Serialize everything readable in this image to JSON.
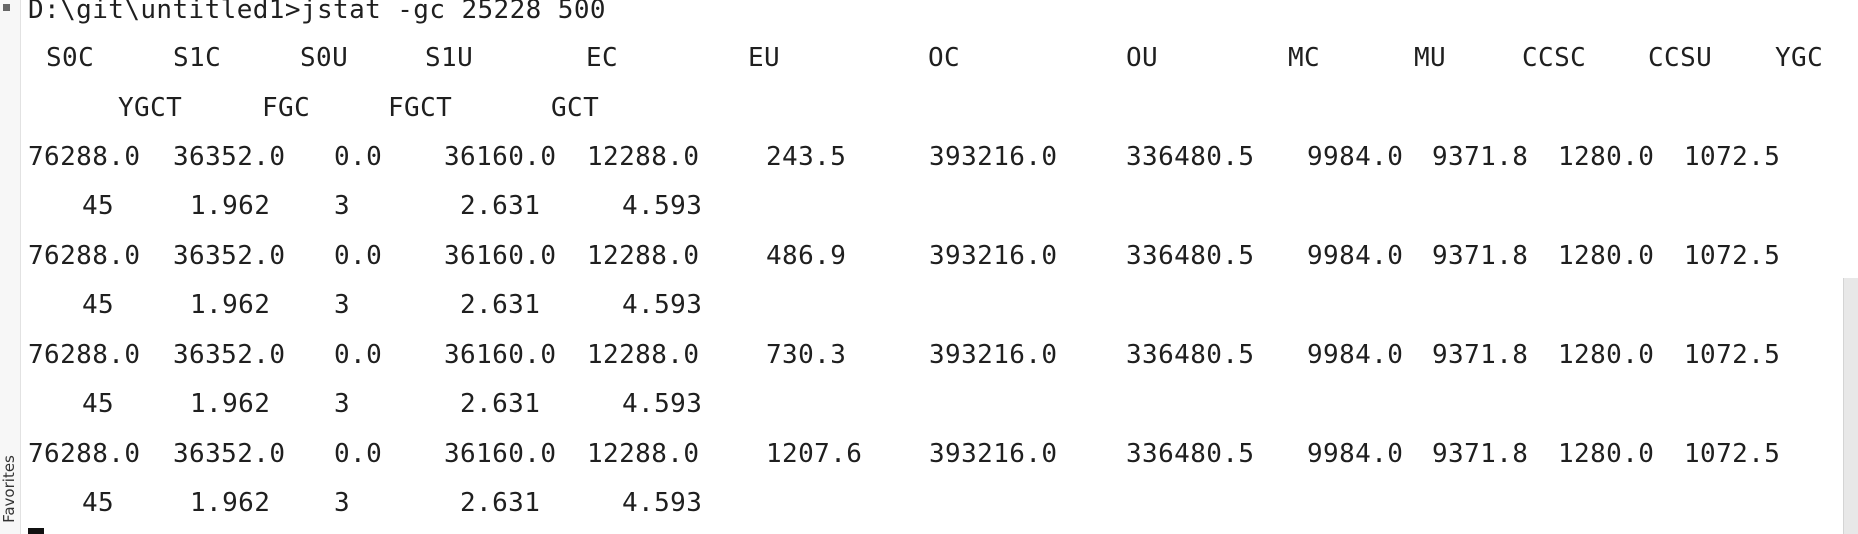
{
  "side_panel": {
    "favorites_label": "Favorites"
  },
  "terminal": {
    "command_line": "D:\\git\\untitled1>jstat -gc 25228 500",
    "headers": {
      "row1": [
        "S0C",
        "S1C",
        "S0U",
        "S1U",
        "EC",
        "EU",
        "OC",
        "OU",
        "MC",
        "MU",
        "CCSC",
        "CCSU",
        "YGC"
      ],
      "row2": [
        "YGCT",
        "FGC",
        "FGCT",
        "GCT"
      ]
    },
    "rows": [
      {
        "main": [
          "76288.0",
          "36352.0",
          "0.0",
          "36160.0",
          "12288.0",
          "243.5",
          "393216.0",
          "336480.5",
          "9984.0",
          "9371.8",
          "1280.0",
          "1072.5"
        ],
        "tail": [
          "45",
          "1.962",
          "3",
          "2.631",
          "4.593"
        ]
      },
      {
        "main": [
          "76288.0",
          "36352.0",
          "0.0",
          "36160.0",
          "12288.0",
          "486.9",
          "393216.0",
          "336480.5",
          "9984.0",
          "9371.8",
          "1280.0",
          "1072.5"
        ],
        "tail": [
          "45",
          "1.962",
          "3",
          "2.631",
          "4.593"
        ]
      },
      {
        "main": [
          "76288.0",
          "36352.0",
          "0.0",
          "36160.0",
          "12288.0",
          "730.3",
          "393216.0",
          "336480.5",
          "9984.0",
          "9371.8",
          "1280.0",
          "1072.5"
        ],
        "tail": [
          "45",
          "1.962",
          "3",
          "2.631",
          "4.593"
        ]
      },
      {
        "main": [
          "76288.0",
          "36352.0",
          "0.0",
          "36160.0",
          "12288.0",
          "1207.6",
          "393216.0",
          "336480.5",
          "9984.0",
          "9371.8",
          "1280.0",
          "1072.5"
        ],
        "tail": [
          "45",
          "1.962",
          "3",
          "2.631",
          "4.593"
        ]
      }
    ]
  }
}
